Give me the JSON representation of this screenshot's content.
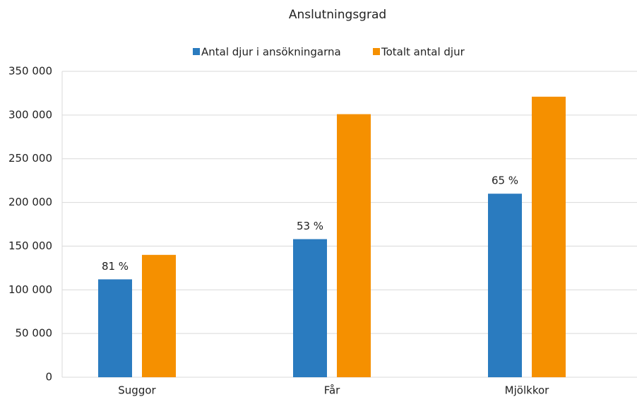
{
  "chart_data": {
    "type": "bar",
    "title": "Anslutningsgrad",
    "categories": [
      "Suggor",
      "Får",
      "Mjölkkor"
    ],
    "series": [
      {
        "name": "Antal djur i ansökningarna",
        "color": "#2a7bbf",
        "values": [
          112000,
          158000,
          210000
        ],
        "value_labels": [
          "81 %",
          "53 %",
          "65 %"
        ]
      },
      {
        "name": "Totalt antal djur",
        "color": "#f59000",
        "values": [
          140000,
          301000,
          321000
        ]
      }
    ],
    "ylim": [
      0,
      350000
    ],
    "yticks": [
      0,
      {
        "value": 50000,
        "label": "50 000"
      },
      {
        "value": 100000,
        "label": "100 000"
      },
      {
        "value": 150000,
        "label": "150 000"
      },
      {
        "value": 200000,
        "label": "200 000"
      },
      {
        "value": 250000,
        "label": "250 000"
      },
      {
        "value": 300000,
        "label": "300 000"
      },
      {
        "value": 350000,
        "label": "350 000"
      }
    ],
    "grid": true,
    "legend": "top"
  }
}
